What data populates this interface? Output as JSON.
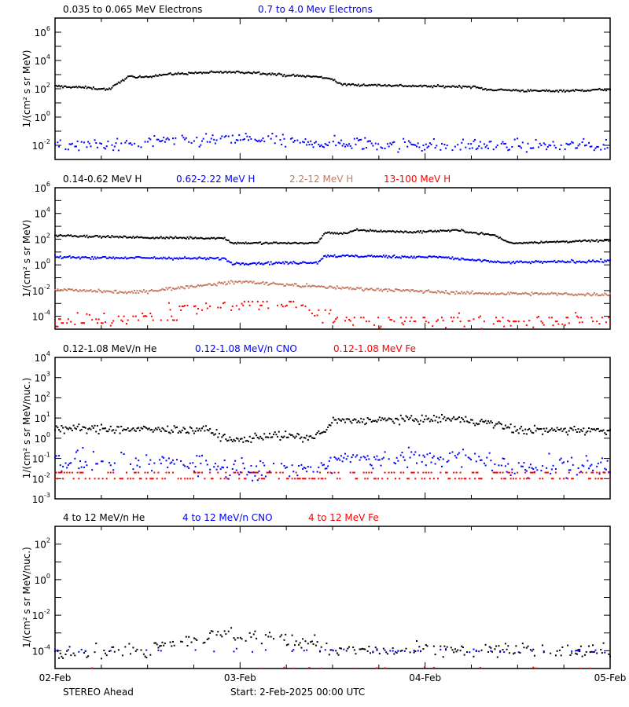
{
  "footer": {
    "spacecraft": "STEREO Ahead",
    "start": "Start:  2-Feb-2025 00:00 UTC"
  },
  "colors": {
    "black": "#000000",
    "blue": "#0000ff",
    "brown": "#c87860",
    "red": "#ff0000"
  },
  "chart_data": [
    {
      "type": "scatter",
      "ylabel": "1/(cm² s sr MeV)",
      "yscale": "log",
      "ylim": [
        0.001,
        10000000
      ],
      "ytick_base": "10",
      "ytick_exponents": [
        "-2",
        "0",
        "2",
        "4",
        "6"
      ],
      "xlim": [
        "2025-02-02T00:00",
        "2025-02-05T00:00"
      ],
      "xtick_labels": [
        "02-Feb",
        "03-Feb",
        "04-Feb",
        "05-Feb"
      ],
      "series": [
        {
          "name": "0.035 to 0.065 MeV Electrons",
          "color": "#000000",
          "points": [
            [
              "2025-02-02T00:00",
              150
            ],
            [
              "2025-02-02T04:00",
              120
            ],
            [
              "2025-02-02T07:00",
              90
            ],
            [
              "2025-02-02T08:30",
              300
            ],
            [
              "2025-02-02T09:30",
              800
            ],
            [
              "2025-02-02T10:30",
              600
            ],
            [
              "2025-02-02T14:00",
              1000
            ],
            [
              "2025-02-02T18:00",
              1300
            ],
            [
              "2025-02-02T22:00",
              1500
            ],
            [
              "2025-02-03T02:00",
              1400
            ],
            [
              "2025-02-03T06:00",
              900
            ],
            [
              "2025-02-03T10:00",
              700
            ],
            [
              "2025-02-03T12:00",
              500
            ],
            [
              "2025-02-03T13:00",
              200
            ],
            [
              "2025-02-03T18:00",
              180
            ],
            [
              "2025-02-04T00:00",
              150
            ],
            [
              "2025-02-04T06:00",
              140
            ],
            [
              "2025-02-04T08:00",
              90
            ],
            [
              "2025-02-04T14:00",
              70
            ],
            [
              "2025-02-04T20:00",
              75
            ],
            [
              "2025-02-05T00:00",
              90
            ]
          ]
        },
        {
          "name": "0.7 to 4.0 Mev Electrons",
          "color": "#0000ff",
          "points": [
            [
              "2025-02-02T00:00",
              0.01
            ],
            [
              "2025-02-02T08:00",
              0.01
            ],
            [
              "2025-02-02T14:00",
              0.02
            ],
            [
              "2025-02-03T02:00",
              0.025
            ],
            [
              "2025-02-03T08:00",
              0.015
            ],
            [
              "2025-02-04T00:00",
              0.01
            ],
            [
              "2025-02-05T00:00",
              0.009
            ]
          ]
        }
      ]
    },
    {
      "type": "scatter",
      "ylabel": "1/(cm² s sr MeV)",
      "yscale": "log",
      "ylim": [
        1e-05,
        1000000
      ],
      "ytick_base": "10",
      "ytick_exponents": [
        "-4",
        "-2",
        "0",
        "2",
        "4",
        "6"
      ],
      "xlim": [
        "2025-02-02T00:00",
        "2025-02-05T00:00"
      ],
      "series": [
        {
          "name": "0.14-0.62 MeV H",
          "color": "#000000",
          "points": [
            [
              "2025-02-02T00:00",
              200
            ],
            [
              "2025-02-02T12:00",
              130
            ],
            [
              "2025-02-02T22:00",
              120
            ],
            [
              "2025-02-02T23:00",
              50
            ],
            [
              "2025-02-03T10:00",
              50
            ],
            [
              "2025-02-03T11:00",
              300
            ],
            [
              "2025-02-03T14:00",
              300
            ],
            [
              "2025-02-03T15:00",
              500
            ],
            [
              "2025-02-03T22:00",
              350
            ],
            [
              "2025-02-04T04:00",
              500
            ],
            [
              "2025-02-04T09:00",
              200
            ],
            [
              "2025-02-04T11:00",
              50
            ],
            [
              "2025-02-04T16:00",
              60
            ],
            [
              "2025-02-05T00:00",
              80
            ]
          ]
        },
        {
          "name": "0.62-2.22 MeV H",
          "color": "#0000ff",
          "points": [
            [
              "2025-02-02T00:00",
              4
            ],
            [
              "2025-02-02T22:00",
              3
            ],
            [
              "2025-02-02T23:00",
              1.3
            ],
            [
              "2025-02-03T10:00",
              1.5
            ],
            [
              "2025-02-03T11:00",
              5
            ],
            [
              "2025-02-04T02:00",
              4
            ],
            [
              "2025-02-04T10:00",
              1.5
            ],
            [
              "2025-02-05T00:00",
              2
            ]
          ]
        },
        {
          "name": "2.2-12 MeV H",
          "color": "#c87860",
          "points": [
            [
              "2025-02-02T00:00",
              0.012
            ],
            [
              "2025-02-02T10:00",
              0.007
            ],
            [
              "2025-02-03T00:00",
              0.05
            ],
            [
              "2025-02-03T10:00",
              0.02
            ],
            [
              "2025-02-03T21:00",
              0.01
            ],
            [
              "2025-02-04T07:00",
              0.006
            ],
            [
              "2025-02-05T00:00",
              0.005
            ]
          ]
        },
        {
          "name": "13-100 MeV H",
          "color": "#ff0000",
          "points": [
            [
              "2025-02-02T00:00",
              3e-05
            ],
            [
              "2025-02-02T08:00",
              5e-05
            ],
            [
              "2025-02-02T16:00",
              0.0003
            ],
            [
              "2025-02-03T00:00",
              0.0007
            ],
            [
              "2025-02-03T08:00",
              0.0003
            ],
            [
              "2025-02-03T12:00",
              4e-05
            ],
            [
              "2025-02-05T00:00",
              3e-05
            ]
          ]
        }
      ]
    },
    {
      "type": "scatter",
      "ylabel": "1/(cm² s sr MeV/nuc.)",
      "yscale": "log",
      "ylim": [
        0.001,
        10000
      ],
      "ytick_base": "10",
      "ytick_exponents": [
        "-3",
        "-2",
        "-1",
        "0",
        "1",
        "2",
        "3",
        "4"
      ],
      "xlim": [
        "2025-02-02T00:00",
        "2025-02-05T00:00"
      ],
      "series": [
        {
          "name": "0.12-1.08 MeV/n He",
          "color": "#000000",
          "points": [
            [
              "2025-02-02T00:00",
              3
            ],
            [
              "2025-02-02T20:00",
              2.5
            ],
            [
              "2025-02-02T23:00",
              0.7
            ],
            [
              "2025-02-03T04:00",
              1.5
            ],
            [
              "2025-02-03T09:00",
              1
            ],
            [
              "2025-02-03T11:00",
              2
            ],
            [
              "2025-02-03T12:00",
              7
            ],
            [
              "2025-02-03T20:00",
              8
            ],
            [
              "2025-02-04T04:00",
              9
            ],
            [
              "2025-02-04T09:00",
              5
            ],
            [
              "2025-02-04T12:00",
              2.5
            ],
            [
              "2025-02-05T00:00",
              2.5
            ]
          ]
        },
        {
          "name": "0.12-1.08 MeV/n CNO",
          "color": "#0000ff",
          "points": [
            [
              "2025-02-02T00:00",
              0.07
            ],
            [
              "2025-02-02T20:00",
              0.06
            ],
            [
              "2025-02-02T22:00",
              0.03
            ],
            [
              "2025-02-03T11:00",
              0.03
            ],
            [
              "2025-02-03T12:00",
              0.1
            ],
            [
              "2025-02-04T08:00",
              0.1
            ],
            [
              "2025-02-04T10:00",
              0.04
            ],
            [
              "2025-02-05T00:00",
              0.04
            ]
          ]
        },
        {
          "name": "0.12-1.08 MeV Fe",
          "color": "#ff0000",
          "points": [
            [
              "2025-02-02T00:00",
              0.01
            ],
            [
              "2025-02-05T00:00",
              0.01
            ]
          ]
        }
      ]
    },
    {
      "type": "scatter",
      "ylabel": "1/(cm² s sr MeV/nuc.)",
      "yscale": "log",
      "ylim": [
        1e-05,
        1000
      ],
      "ytick_base": "10",
      "ytick_exponents": [
        "-4",
        "-2",
        "0",
        "2"
      ],
      "xlim": [
        "2025-02-02T00:00",
        "2025-02-05T00:00"
      ],
      "series": [
        {
          "name": "4 to 12 MeV/n He",
          "color": "#000000",
          "points": [
            [
              "2025-02-02T00:00",
              0.0001
            ],
            [
              "2025-02-02T12:00",
              0.0001
            ],
            [
              "2025-02-02T14:00",
              0.0003
            ],
            [
              "2025-02-02T22:00",
              0.0008
            ],
            [
              "2025-02-03T04:00",
              0.0006
            ],
            [
              "2025-02-03T10:00",
              0.0003
            ],
            [
              "2025-02-03T11:00",
              0.0001
            ],
            [
              "2025-02-05T00:00",
              0.0001
            ]
          ]
        },
        {
          "name": "4 to 12 MeV/n CNO",
          "color": "#0000ff",
          "points": [
            [
              "2025-02-02T00:00",
              0.0001
            ],
            [
              "2025-02-05T00:00",
              0.0001
            ]
          ]
        },
        {
          "name": "4 to 12 MeV Fe",
          "color": "#ff0000",
          "points": [
            [
              "2025-02-02T00:00",
              1e-05
            ],
            [
              "2025-02-05T00:00",
              1e-05
            ]
          ]
        }
      ]
    }
  ]
}
